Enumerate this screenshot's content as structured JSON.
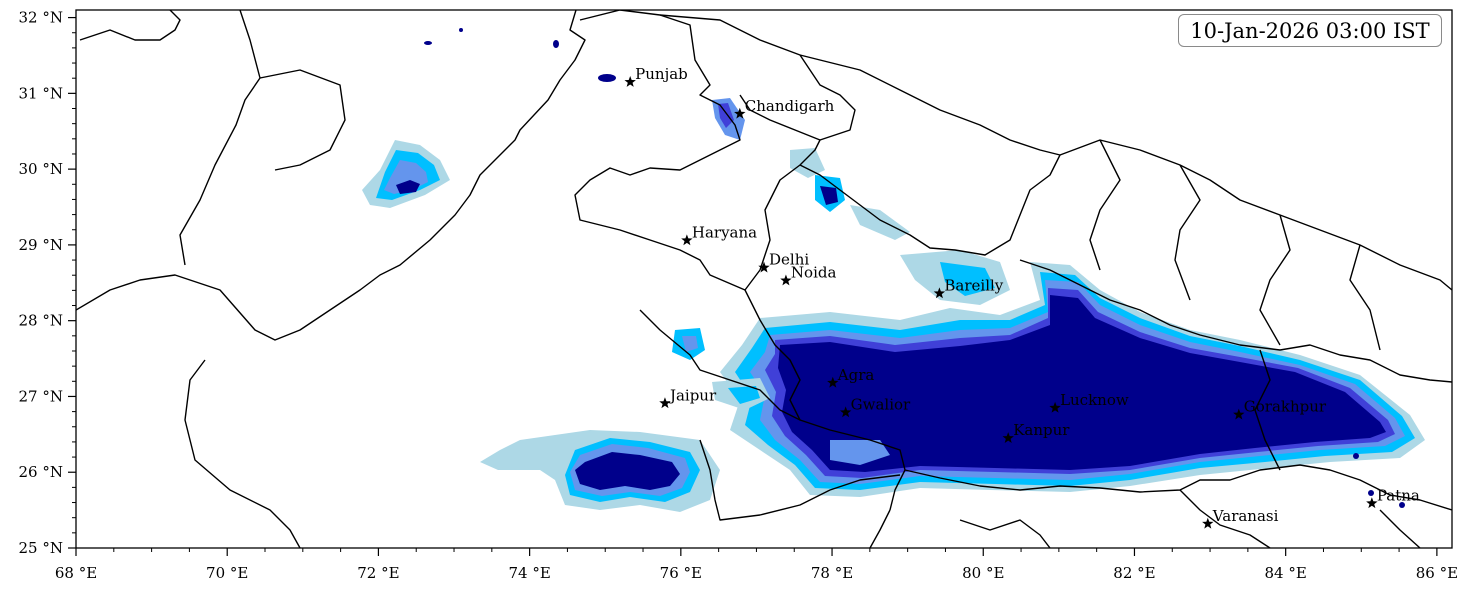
{
  "timestamp": "10-Jan-2026 03:00 IST",
  "axes": {
    "x_ticks": [
      "68 °E",
      "70 °E",
      "72 °E",
      "74 °E",
      "76 °E",
      "78 °E",
      "80 °E",
      "82 °E",
      "84 °E",
      "86 °E"
    ],
    "y_ticks": [
      "32 °N",
      "31 °N",
      "30 °N",
      "29 °N",
      "28 °N",
      "27 °N",
      "26 °N",
      "25 °N"
    ],
    "lon_range": [
      68,
      86.2
    ],
    "lat_range": [
      25,
      32.1
    ]
  },
  "colors": {
    "level_1": "#add8e6",
    "level_2": "#00bfff",
    "level_3": "#6495ed",
    "level_4": "#4040d8",
    "level_5": "#00008b",
    "border": "#000000",
    "marker": "#000000"
  },
  "cities": [
    {
      "name": "Punjab",
      "lon": 75.33,
      "lat": 31.15
    },
    {
      "name": "Chandigarh",
      "lon": 76.78,
      "lat": 30.73
    },
    {
      "name": "Haryana",
      "lon": 76.08,
      "lat": 29.06
    },
    {
      "name": "Delhi",
      "lon": 77.1,
      "lat": 28.7
    },
    {
      "name": "Noida",
      "lon": 77.39,
      "lat": 28.53
    },
    {
      "name": "Bareilly",
      "lon": 79.42,
      "lat": 28.36
    },
    {
      "name": "Agra",
      "lon": 78.01,
      "lat": 27.18
    },
    {
      "name": "Jaipur",
      "lon": 75.79,
      "lat": 26.91
    },
    {
      "name": "Lucknow",
      "lon": 80.95,
      "lat": 26.85
    },
    {
      "name": "Gwalior",
      "lon": 78.18,
      "lat": 26.79
    },
    {
      "name": "Gorakhpur",
      "lon": 83.38,
      "lat": 26.76
    },
    {
      "name": "Kanpur",
      "lon": 80.33,
      "lat": 26.45
    },
    {
      "name": "Patna",
      "lon": 85.14,
      "lat": 25.59
    },
    {
      "name": "Varanasi",
      "lon": 82.97,
      "lat": 25.32
    }
  ]
}
